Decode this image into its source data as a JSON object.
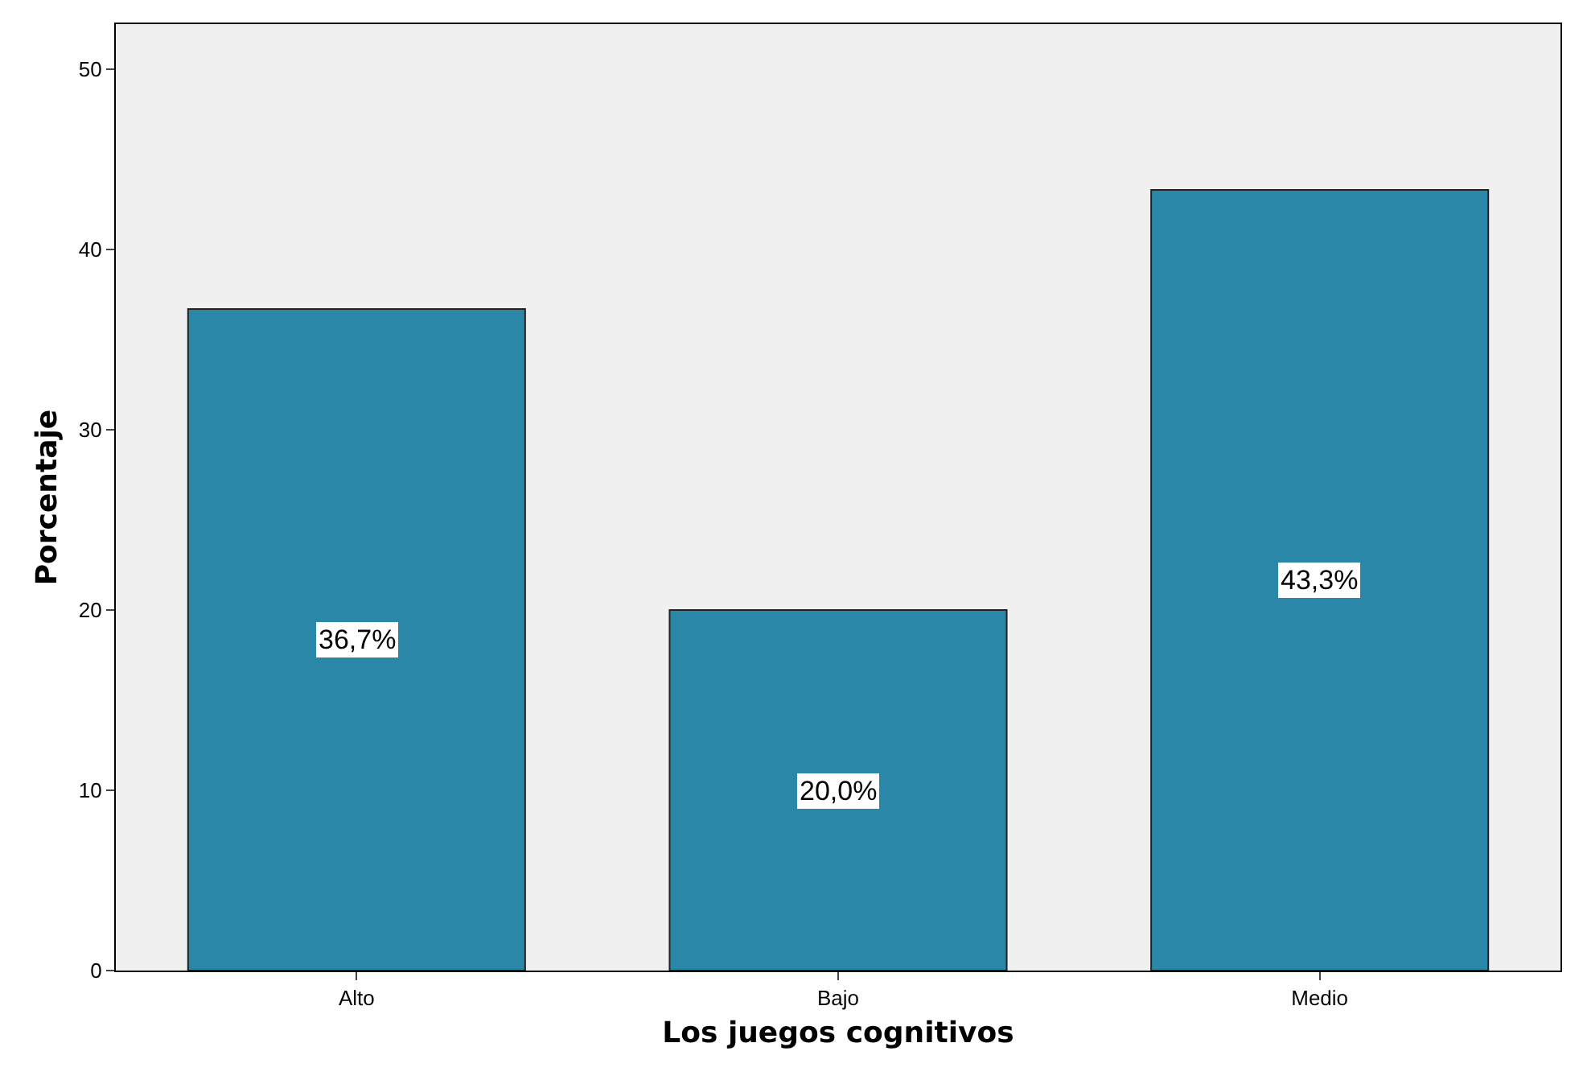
{
  "chart_data": {
    "type": "bar",
    "xlabel": "Los juegos cognitivos",
    "ylabel": "Porcentaje",
    "categories": [
      "Alto",
      "Bajo",
      "Medio"
    ],
    "values": [
      36.7,
      20.0,
      43.3
    ],
    "value_labels": [
      "36,7%",
      "20,0%",
      "43,3%"
    ],
    "color": "#2a87a8",
    "ylim": [
      0,
      52.5
    ],
    "yticks": [
      0,
      10,
      20,
      30,
      40,
      50
    ]
  }
}
